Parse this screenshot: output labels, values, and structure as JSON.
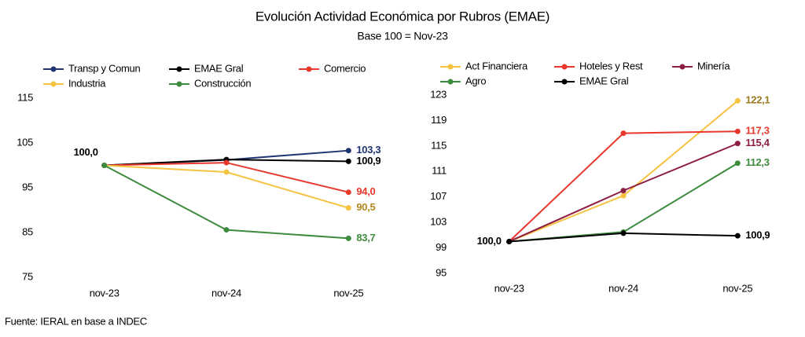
{
  "title": "Evolución Actividad Económica por Rubros (EMAE)",
  "subtitle": "Base 100 = Nov-23",
  "source": "Fuente: IERAL en base a INDEC",
  "chart_data": [
    {
      "type": "line",
      "categories": [
        "nov-23",
        "nov-24",
        "nov-25"
      ],
      "ylim": [
        75,
        115
      ],
      "yticks": [
        75,
        85,
        95,
        105,
        115
      ],
      "series": [
        {
          "name": "Transp y Comun",
          "color": "#1f3473",
          "label_color": "#1f3473",
          "values": [
            100,
            101.2,
            103.3
          ],
          "value_labels": [
            null,
            null,
            "103,3"
          ]
        },
        {
          "name": "EMAE Gral",
          "color": "#000000",
          "label_color": "#000000",
          "values": [
            100,
            101.3,
            100.9
          ],
          "value_labels": [
            "100,0",
            null,
            "100,9"
          ]
        },
        {
          "name": "Comercio",
          "color": "#e8382d",
          "label_color": "#e8382d",
          "values": [
            100,
            100.6,
            94.0
          ],
          "value_labels": [
            null,
            null,
            "94,0"
          ]
        },
        {
          "name": "Industria",
          "color": "#f5c242",
          "label_color": "#b38a22",
          "values": [
            100,
            98.5,
            90.5
          ],
          "value_labels": [
            null,
            null,
            "90,5"
          ]
        },
        {
          "name": "Construcción",
          "color": "#3d8b3d",
          "label_color": "#3d8b3d",
          "values": [
            100,
            85.6,
            83.7
          ],
          "value_labels": [
            null,
            null,
            "83,7"
          ]
        }
      ]
    },
    {
      "type": "line",
      "categories": [
        "nov-23",
        "nov-24",
        "nov-25"
      ],
      "ylim": [
        95,
        123
      ],
      "yticks": [
        95,
        99,
        103,
        107,
        111,
        115,
        119,
        123
      ],
      "series": [
        {
          "name": "Act Financiera",
          "color": "#f5c242",
          "label_color": "#9a7a1f",
          "values": [
            100,
            107.2,
            122.1
          ],
          "value_labels": [
            null,
            null,
            "122,1"
          ]
        },
        {
          "name": "Hoteles y Rest",
          "color": "#e8382d",
          "label_color": "#e8382d",
          "values": [
            100,
            117.0,
            117.3
          ],
          "value_labels": [
            null,
            null,
            "117,3"
          ]
        },
        {
          "name": "Minería",
          "color": "#8e1e43",
          "label_color": "#8e1e43",
          "values": [
            100,
            108.0,
            115.4
          ],
          "value_labels": [
            null,
            null,
            "115,4"
          ]
        },
        {
          "name": "Agro",
          "color": "#3d8b3d",
          "label_color": "#3d8b3d",
          "values": [
            100,
            101.5,
            112.3
          ],
          "value_labels": [
            null,
            null,
            "112,3"
          ]
        },
        {
          "name": "EMAE Gral",
          "color": "#000000",
          "label_color": "#000000",
          "values": [
            100,
            101.3,
            100.9
          ],
          "value_labels": [
            "100,0",
            null,
            "100,9"
          ]
        }
      ]
    }
  ]
}
